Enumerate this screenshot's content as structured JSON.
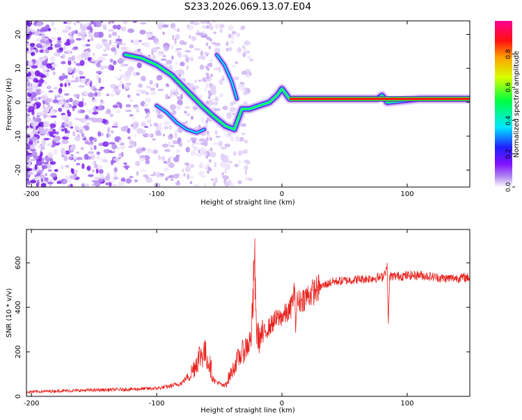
{
  "title": "S233.2026.069.13.07.E04",
  "chart_data": [
    {
      "type": "heatmap",
      "xlabel": "Height of straight line (km)",
      "ylabel": "Frequency (Hz)",
      "xlim": [
        -204,
        150
      ],
      "ylim": [
        -25,
        24
      ],
      "xticks": [
        -200,
        -100,
        0,
        100
      ],
      "yticks": [
        -20,
        -10,
        0,
        10,
        20
      ],
      "track": {
        "description_x": [
          -125,
          -112,
          -100,
          -88,
          -80,
          -72,
          -64,
          -55,
          -45,
          -38,
          -32,
          -26,
          -18,
          -10,
          -4,
          0,
          2,
          6,
          20,
          60,
          76,
          80,
          84,
          110,
          150
        ],
        "frequency_y": [
          14,
          13,
          11,
          8,
          5,
          2,
          -1,
          -4,
          -7,
          -8,
          -2,
          -2,
          -1,
          0,
          2,
          4,
          3,
          1,
          1,
          1,
          1,
          2,
          0,
          1,
          1
        ]
      },
      "colorbar": {
        "label": "Normalized spectral amplitude",
        "range": [
          0.0,
          1.0
        ],
        "ticks": [
          "0.0",
          "0.2",
          "0.4",
          "0.6",
          "0.8"
        ]
      }
    },
    {
      "type": "line",
      "xlabel": "Height of straight line (km)",
      "ylabel": "SNR (10 * v/v)",
      "xlim": [
        -204,
        150
      ],
      "ylim": [
        0,
        750
      ],
      "xticks": [
        -200,
        -100,
        0,
        100
      ],
      "yticks": [
        0,
        200,
        400,
        600
      ],
      "series_color": "#e8201c",
      "x": [
        -204,
        -180,
        -150,
        -120,
        -100,
        -90,
        -80,
        -72,
        -66,
        -62,
        -58,
        -54,
        -46,
        -40,
        -36,
        -30,
        -25,
        -23,
        -22,
        -21,
        -20,
        -18,
        -12,
        -6,
        0,
        6,
        8,
        10,
        11,
        12,
        20,
        30,
        40,
        60,
        80,
        84,
        85,
        86,
        90,
        110,
        130,
        150
      ],
      "y": [
        20,
        24,
        28,
        32,
        36,
        45,
        60,
        110,
        180,
        200,
        150,
        70,
        45,
        110,
        160,
        210,
        250,
        420,
        680,
        380,
        280,
        260,
        300,
        340,
        360,
        380,
        420,
        470,
        320,
        420,
        450,
        490,
        515,
        525,
        535,
        580,
        320,
        540,
        540,
        545,
        530,
        535
      ]
    }
  ]
}
